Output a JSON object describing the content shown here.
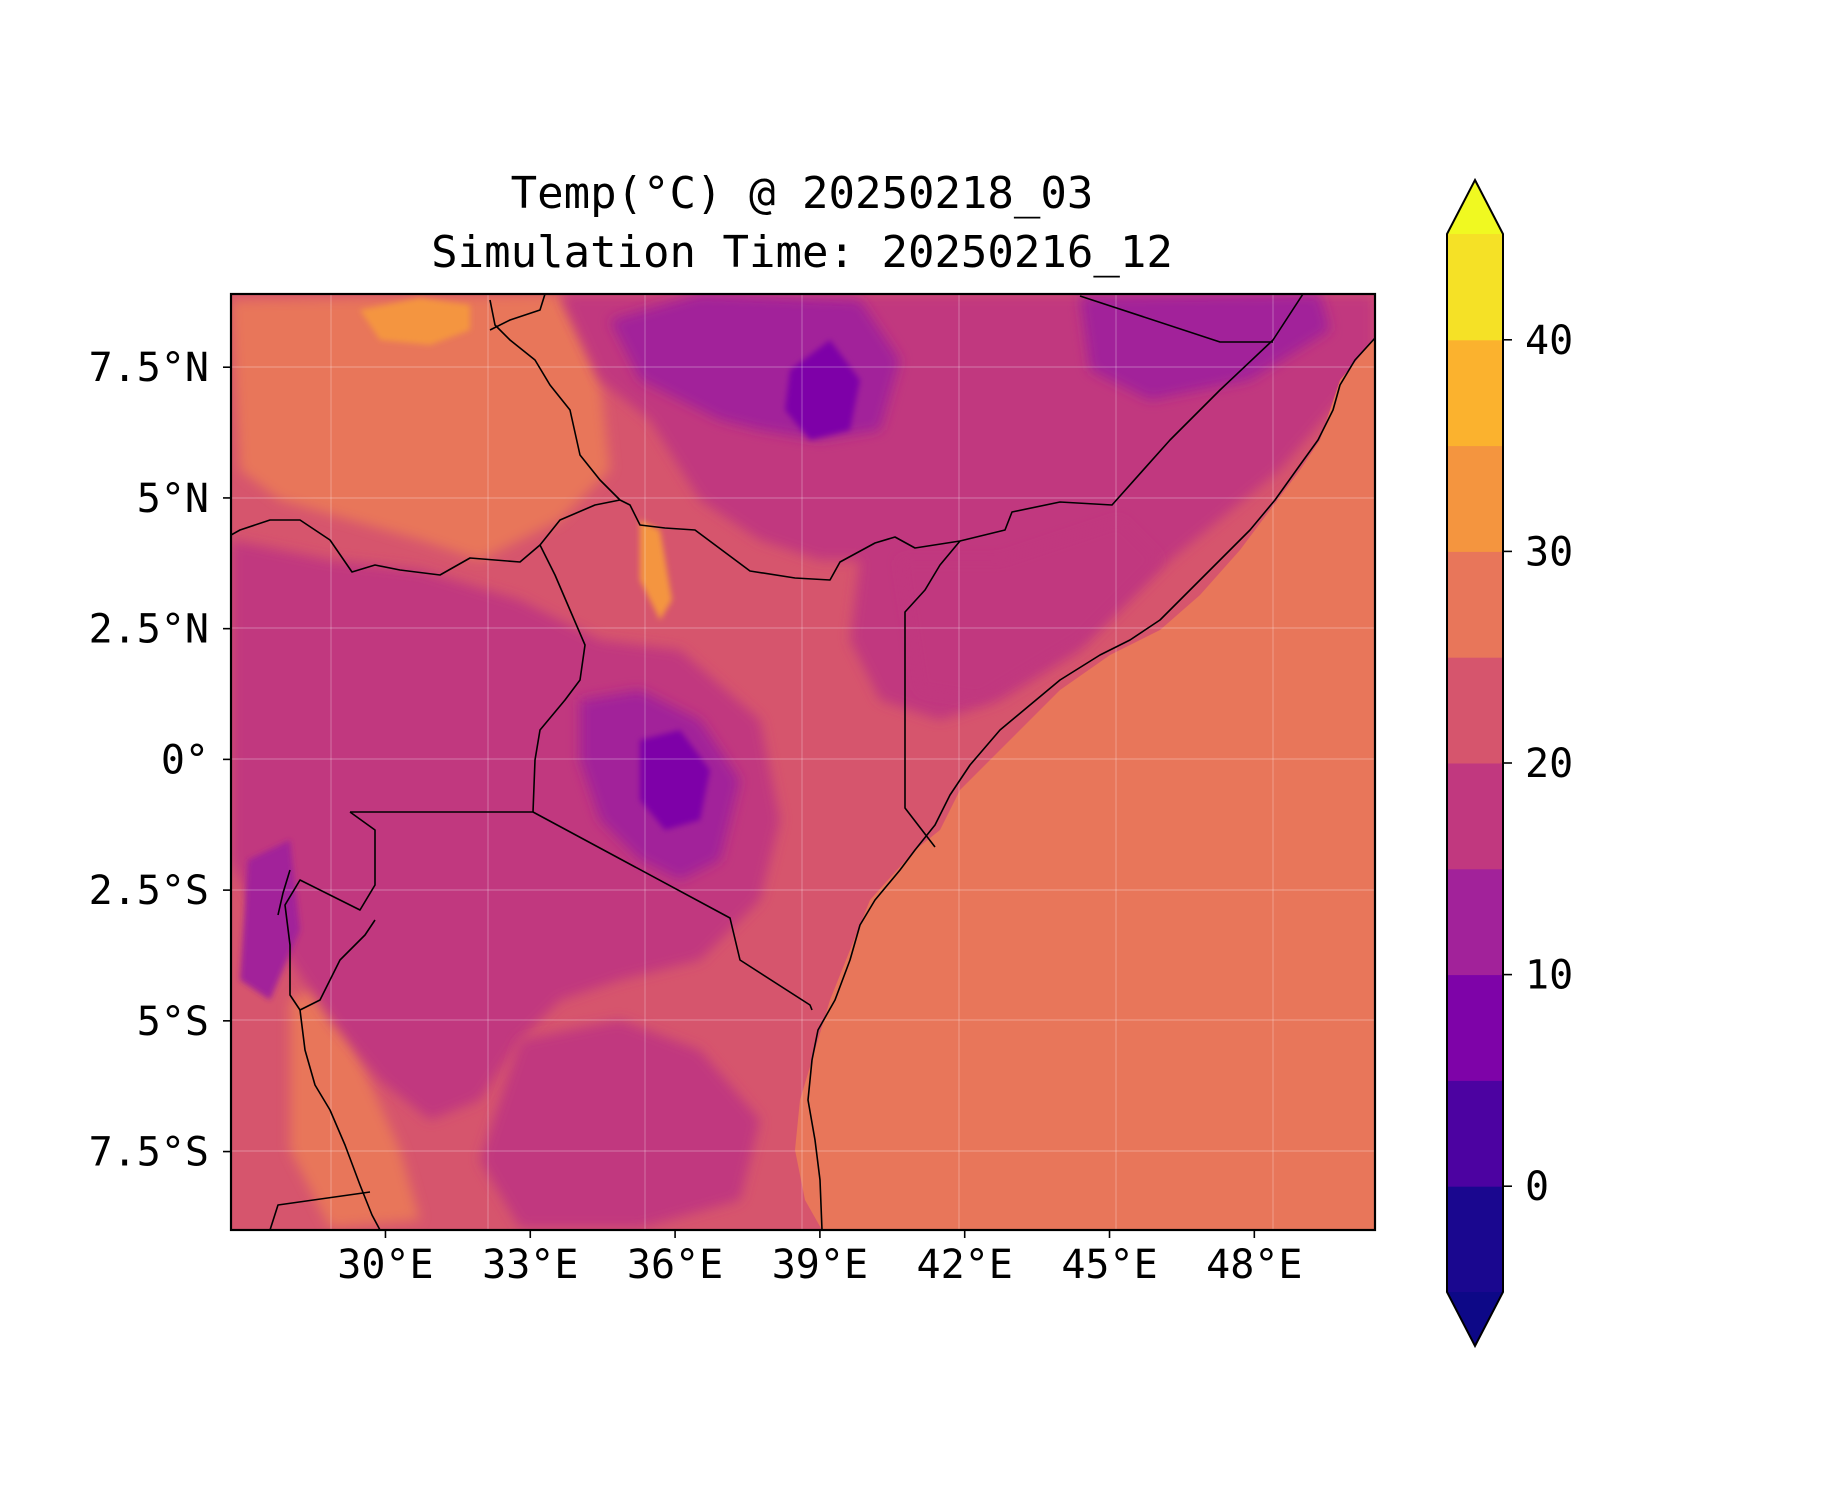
{
  "title": {
    "line1": "Temp(°C) @ 20250218_03",
    "line2": "Simulation Time: 20250216_12"
  },
  "map": {
    "projection": "PlateCarree",
    "lon_range": [
      26.8,
      50.5
    ],
    "lat_range": [
      -9.0,
      8.9
    ],
    "gridlines": true,
    "x_ticks": [
      {
        "value": 30,
        "label": "30°E"
      },
      {
        "value": 33,
        "label": "33°E"
      },
      {
        "value": 36,
        "label": "36°E"
      },
      {
        "value": 39,
        "label": "39°E"
      },
      {
        "value": 42,
        "label": "42°E"
      },
      {
        "value": 45,
        "label": "45°E"
      },
      {
        "value": 48,
        "label": "48°E"
      }
    ],
    "y_ticks": [
      {
        "value": 7.5,
        "label": "7.5°N"
      },
      {
        "value": 5,
        "label": "5°N"
      },
      {
        "value": 2.5,
        "label": "2.5°N"
      },
      {
        "value": 0,
        "label": "0°"
      },
      {
        "value": -2.5,
        "label": "2.5°S"
      },
      {
        "value": -5,
        "label": "5°S"
      },
      {
        "value": -7.5,
        "label": "7.5°S"
      }
    ],
    "field_colors": {
      "ocean": "#e8765a",
      "base_land": "#d6556d",
      "warm": "#e8765a",
      "hot": "#f4953f",
      "cool": "#c1387f",
      "cold": "#a2229a",
      "very_cold": "#7e03a8"
    }
  },
  "colorbar": {
    "colormap": "plasma",
    "levels": [
      -5,
      0,
      5,
      10,
      15,
      20,
      25,
      30,
      35,
      40,
      45
    ],
    "extend": "both",
    "colors": [
      "#1a078f",
      "#4c02a1",
      "#7e03a8",
      "#a2229a",
      "#c1387f",
      "#d6556d",
      "#e8765a",
      "#f4953f",
      "#fbb22e",
      "#f5e126"
    ],
    "under_color": "#0d0887",
    "over_color": "#f0f921",
    "ticks": [
      {
        "value": 0,
        "label": "0"
      },
      {
        "value": 10,
        "label": "10"
      },
      {
        "value": 20,
        "label": "20"
      },
      {
        "value": 30,
        "label": "30"
      },
      {
        "value": 40,
        "label": "40"
      }
    ]
  }
}
